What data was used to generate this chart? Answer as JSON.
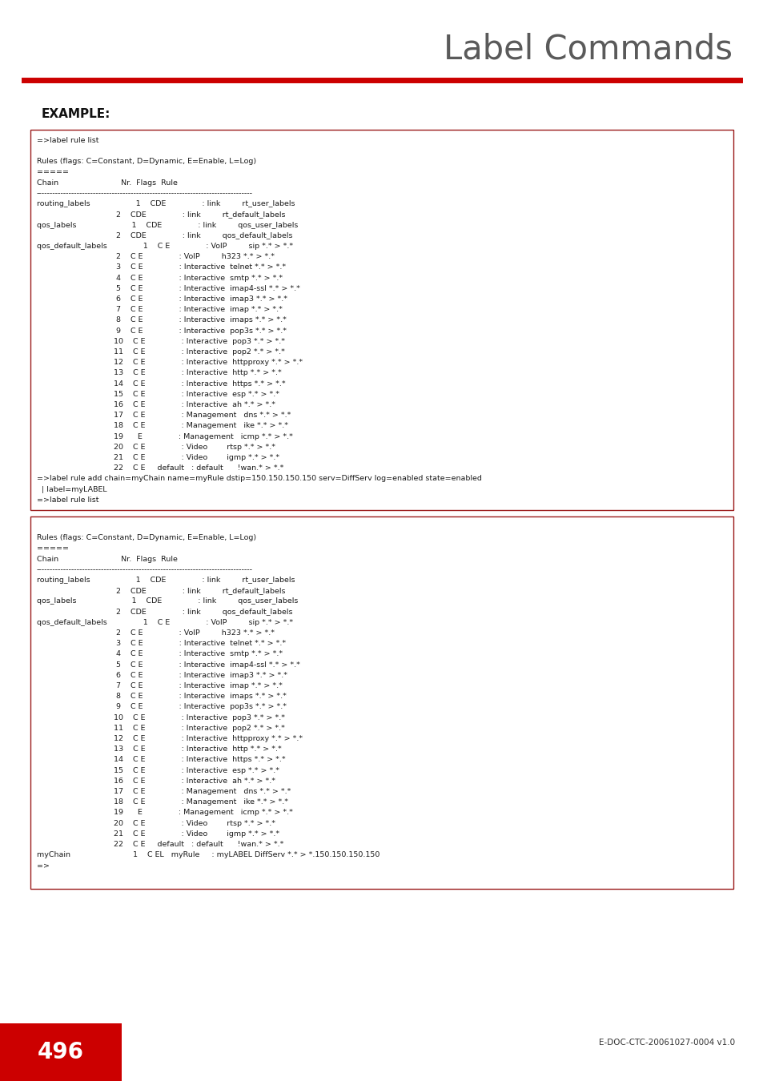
{
  "title": "Label Commands",
  "example_label": "EXAMPLE:",
  "page_number": "496",
  "doc_ref": "E-DOC-CTC-20061027-0004 v1.0",
  "red_color": "#cc0000",
  "background": "#ffffff",
  "box_border_color": "#9b1c1c",
  "code_lines_block1": [
    "=>label rule list",
    "",
    "Rules (flags: C=Constant, D=Dynamic, E=Enable, L=Log)",
    "=====",
    "Chain                          Nr.  Flags  Rule",
    "--------------------------------------------------------------------------------",
    "routing_labels                   1    CDE               : link         rt_user_labels",
    "                                 2    CDE               : link         rt_default_labels",
    "qos_labels                       1    CDE               : link         qos_user_labels",
    "                                 2    CDE               : link         qos_default_labels",
    "qos_default_labels               1    C E               : VoIP         sip *.* > *.*",
    "                                 2    C E               : VoIP         h323 *.* > *.*",
    "                                 3    C E               : Interactive  telnet *.* > *.*",
    "                                 4    C E               : Interactive  smtp *.* > *.*",
    "                                 5    C E               : Interactive  imap4-ssl *.* > *.*",
    "                                 6    C E               : Interactive  imap3 *.* > *.*",
    "                                 7    C E               : Interactive  imap *.* > *.*",
    "                                 8    C E               : Interactive  imaps *.* > *.*",
    "                                 9    C E               : Interactive  pop3s *.* > *.*",
    "                                10    C E               : Interactive  pop3 *.* > *.*",
    "                                11    C E               : Interactive  pop2 *.* > *.*",
    "                                12    C E               : Interactive  httpproxy *.* > *.*",
    "                                13    C E               : Interactive  http *.* > *.*",
    "                                14    C E               : Interactive  https *.* > *.*",
    "                                15    C E               : Interactive  esp *.* > *.*",
    "                                16    C E               : Interactive  ah *.* > *.*",
    "                                17    C E               : Management   dns *.* > *.*",
    "                                18    C E               : Management   ike *.* > *.*",
    "                                19      E               : Management   icmp *.* > *.*",
    "                                20    C E               : Video        rtsp *.* > *.*",
    "                                21    C E               : Video        igmp *.* > *.*",
    "                                22    C E     default   : default      !wan.* > *.*",
    "=>label rule add chain=myChain name=myRule dstip=150.150.150.150 serv=DiffServ log=enabled state=enabled",
    "  | label=myLABEL",
    "=>label rule list"
  ],
  "code_lines_block2": [
    "",
    "Rules (flags: C=Constant, D=Dynamic, E=Enable, L=Log)",
    "=====",
    "Chain                          Nr.  Flags  Rule",
    "--------------------------------------------------------------------------------",
    "routing_labels                   1    CDE               : link         rt_user_labels",
    "                                 2    CDE               : link         rt_default_labels",
    "qos_labels                       1    CDE               : link         qos_user_labels",
    "                                 2    CDE               : link         qos_default_labels",
    "qos_default_labels               1    C E               : VoIP         sip *.* > *.*",
    "                                 2    C E               : VoIP         h323 *.* > *.*",
    "                                 3    C E               : Interactive  telnet *.* > *.*",
    "                                 4    C E               : Interactive  smtp *.* > *.*",
    "                                 5    C E               : Interactive  imap4-ssl *.* > *.*",
    "                                 6    C E               : Interactive  imap3 *.* > *.*",
    "                                 7    C E               : Interactive  imap *.* > *.*",
    "                                 8    C E               : Interactive  imaps *.* > *.*",
    "                                 9    C E               : Interactive  pop3s *.* > *.*",
    "                                10    C E               : Interactive  pop3 *.* > *.*",
    "                                11    C E               : Interactive  pop2 *.* > *.*",
    "                                12    C E               : Interactive  httpproxy *.* > *.*",
    "                                13    C E               : Interactive  http *.* > *.*",
    "                                14    C E               : Interactive  https *.* > *.*",
    "                                15    C E               : Interactive  esp *.* > *.*",
    "                                16    C E               : Interactive  ah *.* > *.*",
    "                                17    C E               : Management   dns *.* > *.*",
    "                                18    C E               : Management   ike *.* > *.*",
    "                                19      E               : Management   icmp *.* > *.*",
    "                                20    C E               : Video        rtsp *.* > *.*",
    "                                21    C E               : Video        igmp *.* > *.*",
    "                                22    C E     default   : default      !wan.* > *.*",
    "myChain                          1    C EL   myRule     : myLABEL DiffServ *.* > *.150.150.150.150",
    "=>"
  ]
}
